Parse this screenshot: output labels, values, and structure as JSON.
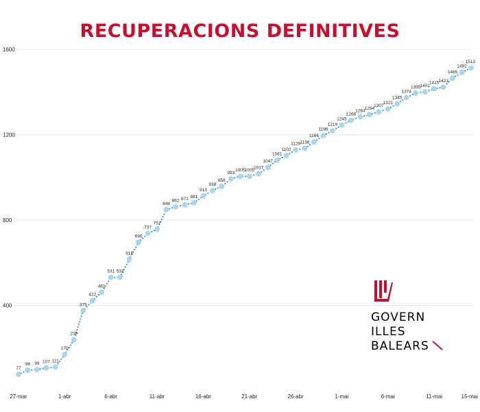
{
  "colors": {
    "title": "#c8102e",
    "marker": "#a9d6ef",
    "dotted_line": "#1f8fb7",
    "grid": "#e5e5e5",
    "logo_red": "#c8102e"
  },
  "logo": {
    "lines": [
      "GOVERN",
      "ILLES",
      "BALEARS"
    ],
    "icon": "coat-of-arms-icon"
  },
  "chart_data": {
    "type": "line",
    "title": "RECUPERACIONS DEFINITIVES",
    "xlabel": "",
    "ylabel": "",
    "ylim": [
      0,
      1600
    ],
    "yticks": [
      400,
      800,
      1200,
      1600
    ],
    "grid": true,
    "x_tick_labels": [
      "27-mar",
      "1-abr",
      "6-abr",
      "11-abr",
      "16-abr",
      "21-abr",
      "26-abr",
      "1-mai",
      "6-mai",
      "11-mai",
      "15-mai"
    ],
    "x": [
      "27-mar",
      "28-mar",
      "29-mar",
      "30-mar",
      "31-mar",
      "1-abr",
      "2-abr",
      "3-abr",
      "4-abr",
      "5-abr",
      "6-abr",
      "7-abr",
      "8-abr",
      "9-abr",
      "10-abr",
      "11-abr",
      "12-abr",
      "13-abr",
      "14-abr",
      "15-abr",
      "16-abr",
      "17-abr",
      "18-abr",
      "19-abr",
      "20-abr",
      "21-abr",
      "22-abr",
      "23-abr",
      "24-abr",
      "25-abr",
      "26-abr",
      "27-abr",
      "28-abr",
      "29-abr",
      "30-abr",
      "1-mai",
      "2-mai",
      "3-mai",
      "4-mai",
      "5-mai",
      "6-mai",
      "7-mai",
      "8-mai",
      "9-mai",
      "10-mai",
      "11-mai",
      "12-mai",
      "13-mai",
      "14-mai",
      "15-mai"
    ],
    "values": [
      77,
      96,
      99,
      107,
      111,
      170,
      239,
      375,
      422,
      461,
      531,
      532,
      616,
      696,
      737,
      757,
      848,
      862,
      871,
      881,
      913,
      938,
      958,
      993,
      1005,
      1005,
      1017,
      1047,
      1081,
      1102,
      1129,
      1136,
      1166,
      1196,
      1219,
      1245,
      1268,
      1284,
      1294,
      1307,
      1321,
      1345,
      1374,
      1395,
      1401,
      1415,
      1423,
      1465,
      1492,
      1513
    ]
  }
}
